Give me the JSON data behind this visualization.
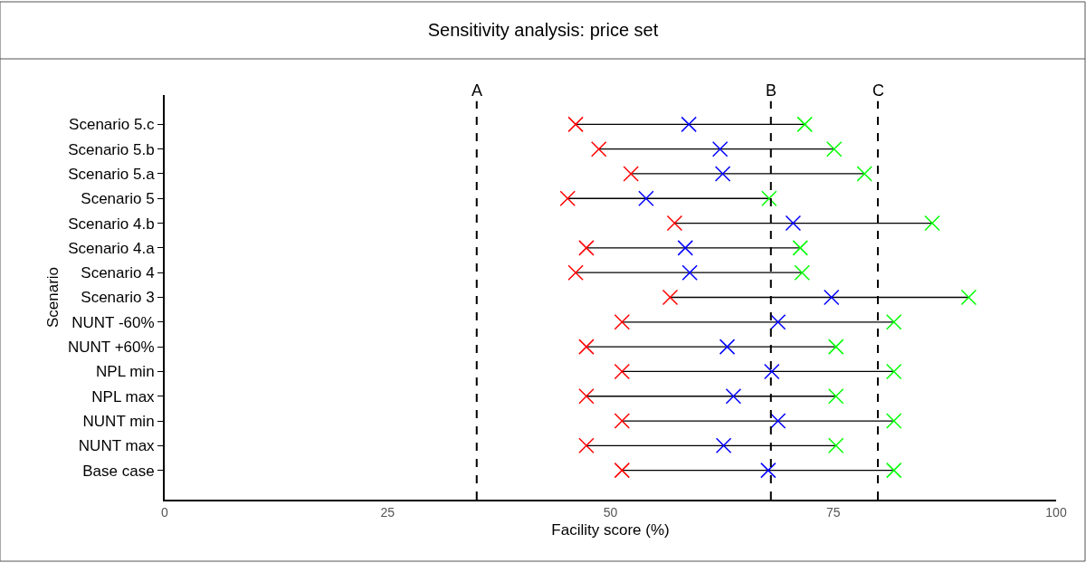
{
  "chart_data": {
    "type": "scatter",
    "orientation": "horizontal",
    "title": "Sensitivity analysis: price set",
    "xlabel": "Facility score (%)",
    "ylabel": "Scenario",
    "marker": "cross",
    "categories": [
      "Scenario 5.c",
      "Scenario 5.b",
      "Scenario 5.a",
      "Scenario 5",
      "Scenario 4.b",
      "Scenario 4.a",
      "Scenario 4",
      "Scenario 3",
      "NUNT -60%",
      "NUNT +60%",
      "NPL min",
      "NPL max",
      "NUNT min",
      "NUNT max",
      "Base case"
    ],
    "xlim": [
      0,
      100
    ],
    "xticks": [
      0,
      25,
      50,
      75,
      100
    ],
    "series": [
      {
        "color": "#ff0000",
        "values": [
          46.1,
          48.7,
          52.3,
          45.2,
          57.2,
          47.3,
          46.1,
          56.7,
          51.3,
          47.3,
          51.3,
          47.3,
          51.3,
          47.3,
          51.3
        ]
      },
      {
        "color": "#0000ff",
        "values": [
          58.8,
          62.3,
          62.6,
          54.0,
          70.5,
          58.4,
          58.9,
          74.8,
          68.8,
          63.1,
          68.1,
          63.8,
          68.8,
          62.7,
          67.7
        ]
      },
      {
        "color": "#00ff00",
        "values": [
          71.8,
          75.1,
          78.5,
          67.8,
          86.1,
          71.3,
          71.5,
          90.2,
          81.8,
          75.3,
          81.8,
          75.3,
          81.8,
          75.3,
          81.8
        ]
      }
    ],
    "ref_lines": [
      {
        "axis": "x",
        "value": 35,
        "label": "A",
        "color": "#000000",
        "line_style": "dashed"
      },
      {
        "axis": "x",
        "value": 68,
        "label": "B",
        "color": "#000000",
        "line_style": "dashed"
      },
      {
        "axis": "x",
        "value": 80,
        "label": "C",
        "color": "#000000",
        "line_style": "dashed"
      }
    ]
  }
}
